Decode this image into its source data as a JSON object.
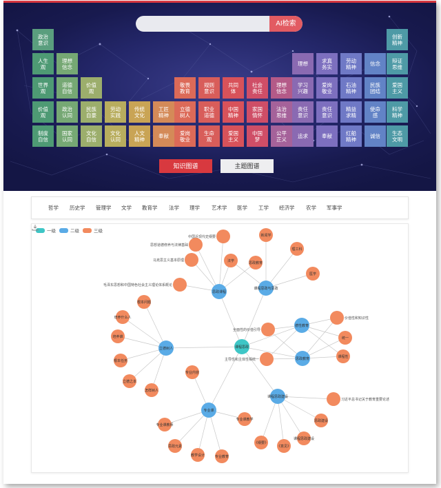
{
  "search": {
    "placeholder": "",
    "button_label": "AI检索"
  },
  "hero_tiles": [
    {
      "label": "政治\n意识",
      "color": "#5a9e7e"
    },
    {
      "label": "人生\n观",
      "color": "#4e9a74"
    },
    {
      "label": "理想\n信念",
      "color": "#76a874"
    },
    {
      "label": "世界\n观",
      "color": "#4e9a74"
    },
    {
      "label": "道德\n自信",
      "color": "#76a874"
    },
    {
      "label": "价值\n观",
      "color": "#9cae6c"
    },
    {
      "label": "价值\n观",
      "color": "#4e9a74"
    },
    {
      "label": "政治\n认同",
      "color": "#76a874"
    },
    {
      "label": "民族\n自豪",
      "color": "#9cae6c"
    },
    {
      "label": "劳动\n实践",
      "color": "#b8ad5e"
    },
    {
      "label": "传统\n文化",
      "color": "#c9a455"
    },
    {
      "label": "工匠\n精神",
      "color": "#d48a58"
    },
    {
      "label": "制度\n自信",
      "color": "#4e9a74"
    },
    {
      "label": "国家\n认同",
      "color": "#76a874"
    },
    {
      "label": "文化\n自信",
      "color": "#9cae6c"
    },
    {
      "label": "文化\n认同",
      "color": "#b8ad5e"
    },
    {
      "label": "人文\n精神",
      "color": "#c9a455"
    },
    {
      "label": "奉献",
      "color": "#d48a58"
    },
    {
      "label": "敬畏\n教育",
      "color": "#dc6a58"
    },
    {
      "label": "规则\n意识",
      "color": "#d85d5a"
    },
    {
      "label": "共同\n体",
      "color": "#d8525a"
    },
    {
      "label": "社会\n责任",
      "color": "#cf4e67"
    },
    {
      "label": "立德\n树人",
      "color": "#dc6a58"
    },
    {
      "label": "职业\n道德",
      "color": "#d85d5a"
    },
    {
      "label": "中国\n精神",
      "color": "#d8525a"
    },
    {
      "label": "家国\n情怀",
      "color": "#cf4e67"
    },
    {
      "label": "爱岗\n敬业",
      "color": "#dc6a58"
    },
    {
      "label": "生命\n观",
      "color": "#d85d5a"
    },
    {
      "label": "爱国\n主义",
      "color": "#d8525a"
    },
    {
      "label": "中国\n梦",
      "color": "#cf4e67"
    },
    {
      "label": "理想\n信念",
      "color": "#b45a88"
    },
    {
      "label": "法治\n思维",
      "color": "#a5629a"
    },
    {
      "label": "公平\n正义",
      "color": "#a5629a"
    },
    {
      "label": "理想",
      "color": "#8a6ab2"
    },
    {
      "label": "求真\n务实",
      "color": "#7d6fbf"
    },
    {
      "label": "劳动\n精神",
      "color": "#6f79c6"
    },
    {
      "label": "信念",
      "color": "#6283c6"
    },
    {
      "label": "学习\n兴趣",
      "color": "#8a6ab2"
    },
    {
      "label": "爱岗\n敬业",
      "color": "#7d6fbf"
    },
    {
      "label": "石油\n精神",
      "color": "#6f79c6"
    },
    {
      "label": "民族\n团结",
      "color": "#6283c6"
    },
    {
      "label": "责任\n意识",
      "color": "#8a6ab2"
    },
    {
      "label": "责任\n意识",
      "color": "#7d6fbf"
    },
    {
      "label": "精益\n求精",
      "color": "#6f79c6"
    },
    {
      "label": "使命\n感",
      "color": "#6283c6"
    },
    {
      "label": "追求",
      "color": "#8a6ab2"
    },
    {
      "label": "奉献",
      "color": "#7d6fbf"
    },
    {
      "label": "红船\n精神",
      "color": "#6f79c6"
    },
    {
      "label": "诚信",
      "color": "#6283c6"
    },
    {
      "label": "创新\n精神",
      "color": "#4e9aa6"
    },
    {
      "label": "辩证\n思维",
      "color": "#4e9aa6"
    },
    {
      "label": "爱国\n主义",
      "color": "#4e9aa6"
    },
    {
      "label": "科学\n精神",
      "color": "#4e9aa6"
    },
    {
      "label": "生态\n文明",
      "color": "#4e9aa6"
    }
  ],
  "buttons": {
    "knowledge_graph": "知识图谱",
    "theme_graph": "主题图谱"
  },
  "subjects": [
    "哲学",
    "历史学",
    "管理学",
    "文学",
    "教育学",
    "法学",
    "理学",
    "艺术学",
    "医学",
    "工学",
    "经济学",
    "农学",
    "军事学"
  ],
  "legend": [
    {
      "label": "一级",
      "color": "#3ec6c6"
    },
    {
      "label": "二级",
      "color": "#5aabe6"
    },
    {
      "label": "三级",
      "color": "#f28a5e"
    }
  ],
  "icons": {
    "download": "download-icon"
  },
  "graph": {
    "level_colors": {
      "1": "#3ec6c6",
      "2": "#5aabe6",
      "3": "#f28a5e"
    },
    "nodes": [
      {
        "id": "root",
        "label": "课程思政",
        "level": 1
      },
      {
        "id": "c1",
        "label": "思政课程",
        "level": 2
      },
      {
        "id": "c2",
        "label": "课程思政与思政",
        "level": 2
      },
      {
        "id": "c3",
        "label": "立德树人",
        "level": 2
      },
      {
        "id": "c4",
        "label": "德性教育",
        "level": 2
      },
      {
        "id": "c5",
        "label": "思政教育",
        "level": 2
      },
      {
        "id": "c6",
        "label": "专业课",
        "level": 2
      },
      {
        "id": "c7",
        "label": "课程思政建设",
        "level": 2
      },
      {
        "id": "l1",
        "label": "中国近现代史纲要",
        "level": 3
      },
      {
        "id": "l2",
        "label": "思想道德修养与法律基础",
        "level": 3
      },
      {
        "id": "l3",
        "label": "马克思主义基本原理",
        "level": 3
      },
      {
        "id": "l4",
        "label": "毛泽东思想和中国特色社会主义理论体系概论",
        "level": 3
      },
      {
        "id": "l5",
        "label": "法学",
        "level": 3
      },
      {
        "id": "l6",
        "label": "思政教育",
        "level": 3
      },
      {
        "id": "l7",
        "label": "新闻学",
        "level": 3
      },
      {
        "id": "l8",
        "label": "理工科",
        "level": 3
      },
      {
        "id": "l9",
        "label": "医学",
        "level": 3
      },
      {
        "id": "l10",
        "label": "价值性和知识性",
        "level": 3
      },
      {
        "id": "l11",
        "label": "统一",
        "level": 3
      },
      {
        "id": "l12",
        "label": "课程性",
        "level": 3
      },
      {
        "id": "l13",
        "label": "全面性的价值引导",
        "level": 3
      },
      {
        "id": "l14",
        "label": "主导性和主体性相统一",
        "level": 3
      },
      {
        "id": "l15",
        "label": "根本问题",
        "level": 3
      },
      {
        "id": "l16",
        "label": "培养什么人",
        "level": 3
      },
      {
        "id": "l17",
        "label": "培养谁",
        "level": 3
      },
      {
        "id": "l18",
        "label": "根本任务",
        "level": 3
      },
      {
        "id": "l19",
        "label": "立德之本",
        "level": 3
      },
      {
        "id": "l20",
        "label": "怎样树人",
        "level": 3
      },
      {
        "id": "l21",
        "label": "专业内容",
        "level": 3
      },
      {
        "id": "l22",
        "label": "专业课教师",
        "level": 3
      },
      {
        "id": "l23",
        "label": "思政元素",
        "level": 3
      },
      {
        "id": "l24",
        "label": "教学设计",
        "level": 3
      },
      {
        "id": "l25",
        "label": "专业教育",
        "level": 3
      },
      {
        "id": "l26",
        "label": "专业课教学",
        "level": 3
      },
      {
        "id": "l27",
        "label": "习近平总书记关于教育重要论述",
        "level": 3
      },
      {
        "id": "l28",
        "label": "思政建设",
        "level": 3
      },
      {
        "id": "l29",
        "label": "课程思政建设",
        "level": 3
      },
      {
        "id": "l30",
        "label": "《纲要》",
        "level": 3
      },
      {
        "id": "l31",
        "label": "《意见》",
        "level": 3
      }
    ],
    "edges": [
      [
        "root",
        "c1"
      ],
      [
        "root",
        "c2"
      ],
      [
        "root",
        "c3"
      ],
      [
        "root",
        "c4"
      ],
      [
        "root",
        "c5"
      ],
      [
        "root",
        "c6"
      ],
      [
        "root",
        "c7"
      ],
      [
        "c1",
        "l1"
      ],
      [
        "c1",
        "l2"
      ],
      [
        "c1",
        "l3"
      ],
      [
        "c1",
        "l4"
      ],
      [
        "c1",
        "l5"
      ],
      [
        "c1",
        "l6"
      ],
      [
        "c2",
        "l7"
      ],
      [
        "c2",
        "l8"
      ],
      [
        "c2",
        "l9"
      ],
      [
        "c2",
        "l5"
      ],
      [
        "c4",
        "l10"
      ],
      [
        "c4",
        "l11"
      ],
      [
        "c4",
        "l12"
      ],
      [
        "c4",
        "l13"
      ],
      [
        "c4",
        "l14"
      ],
      [
        "c5",
        "l10"
      ],
      [
        "c5",
        "l11"
      ],
      [
        "c5",
        "l12"
      ],
      [
        "c5",
        "l13"
      ],
      [
        "c5",
        "l14"
      ],
      [
        "c3",
        "l15"
      ],
      [
        "c3",
        "l16"
      ],
      [
        "c3",
        "l17"
      ],
      [
        "c3",
        "l18"
      ],
      [
        "c3",
        "l19"
      ],
      [
        "c3",
        "l20"
      ],
      [
        "c6",
        "l21"
      ],
      [
        "c6",
        "l22"
      ],
      [
        "c6",
        "l23"
      ],
      [
        "c6",
        "l24"
      ],
      [
        "c6",
        "l25"
      ],
      [
        "c6",
        "l26"
      ],
      [
        "c7",
        "l27"
      ],
      [
        "c7",
        "l28"
      ],
      [
        "c7",
        "l29"
      ],
      [
        "c7",
        "l30"
      ],
      [
        "c7",
        "l31"
      ]
    ]
  }
}
